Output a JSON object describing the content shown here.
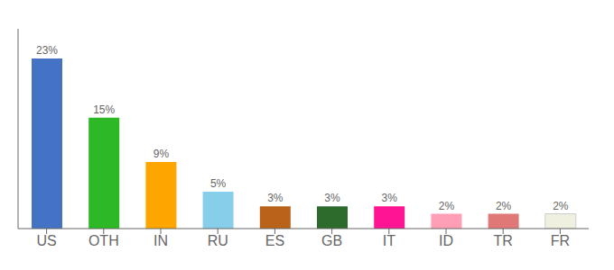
{
  "chart_data": {
    "type": "bar",
    "categories": [
      "US",
      "OTH",
      "IN",
      "RU",
      "ES",
      "GB",
      "IT",
      "ID",
      "TR",
      "FR"
    ],
    "values": [
      23,
      15,
      9,
      5,
      3,
      3,
      3,
      2,
      2,
      2
    ],
    "value_labels": [
      "23%",
      "15%",
      "9%",
      "5%",
      "3%",
      "3%",
      "3%",
      "2%",
      "2%",
      "2%"
    ],
    "colors": [
      "#4472c4",
      "#2db825",
      "#ffa500",
      "#87ceeb",
      "#b8621a",
      "#2d6b2d",
      "#ff1493",
      "#ff9eb5",
      "#e07878",
      "#f0f0e0"
    ],
    "ylim": [
      0,
      27
    ],
    "data_labels": true,
    "tick_labels": "x",
    "grid": false
  }
}
